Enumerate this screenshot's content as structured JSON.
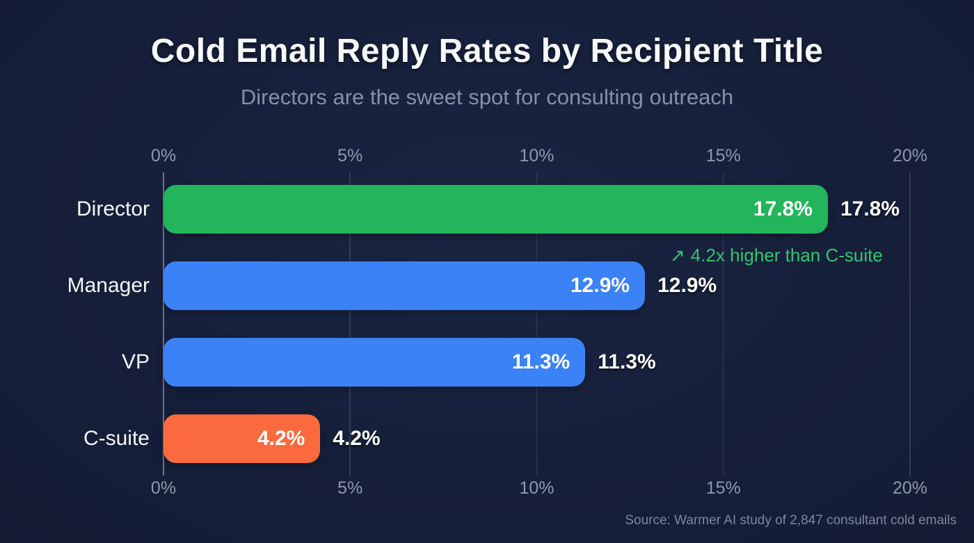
{
  "header": {
    "title": "Cold Email Reply Rates by Recipient Title",
    "subtitle": "Directors are the sweet spot for consulting outreach"
  },
  "colors": {
    "background": "#161f3a",
    "grid": "#313c56",
    "axis_line": "#6b7590",
    "tick_text": "#8e99ad",
    "category_text": "#f5f7fa",
    "value_text": "#ffffff",
    "annotation_green": "#35c46e",
    "bar_green": "#22b55c",
    "bar_blue": "#3b82f6",
    "bar_orange": "#fa6a3e"
  },
  "chart_data": {
    "type": "bar",
    "orientation": "horizontal",
    "title": "Cold Email Reply Rates by Recipient Title",
    "subtitle": "Directors are the sweet spot for consulting outreach",
    "categories": [
      "Director",
      "Manager",
      "VP",
      "C-suite"
    ],
    "values": [
      17.8,
      12.9,
      11.3,
      4.2
    ],
    "value_labels": [
      "17.8%",
      "12.9%",
      "11.3%",
      "4.2%"
    ],
    "bar_colors": [
      "#22b55c",
      "#3b82f6",
      "#3b82f6",
      "#fa6a3e"
    ],
    "xlim": [
      0,
      20
    ],
    "tick_values": [
      0,
      5,
      10,
      15,
      20
    ],
    "tick_labels": [
      "0%",
      "5%",
      "10%",
      "15%",
      "20%"
    ],
    "axis_positions": [
      "top",
      "bottom"
    ],
    "grid": true,
    "legend": "none",
    "annotation": {
      "arrow": "↗",
      "text": "4.2x higher than C-suite"
    }
  },
  "footer": {
    "source": "Source: Warmer AI study of 2,847 consultant cold emails"
  }
}
